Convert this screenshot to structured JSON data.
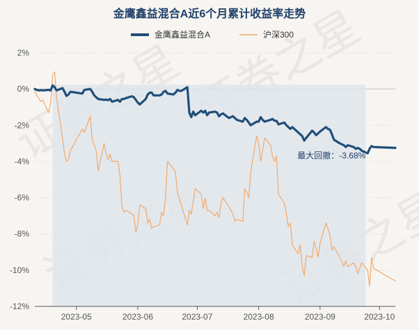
{
  "colors": {
    "fund": "#1f4e79",
    "index": "#f2a96a",
    "shade": "#dfe5ec",
    "grid": "#e6e3de",
    "zero_line": "#d6d2cc",
    "axis": "#555555",
    "title": "#1f3f6a",
    "annotation": "#1f3f6a"
  },
  "watermark": {
    "text": "证券之星"
  },
  "chart_data": {
    "type": "line",
    "title": "金鹰鑫益混合A近6个月累计收益率走势",
    "xlabel": "",
    "ylabel": "",
    "ylim": [
      -12,
      2
    ],
    "yticks": [
      2,
      0,
      -2,
      -4,
      -6,
      -8,
      -10,
      -12
    ],
    "ytick_labels": [
      "2%",
      "0%",
      "-2%",
      "-4%",
      "-6%",
      "-8%",
      "-10%",
      "-12%"
    ],
    "x_range": [
      "2023-04-10",
      "2023-10-09"
    ],
    "xticks": [
      "2023-05-01",
      "2023-06-01",
      "2023-07-01",
      "2023-08-01",
      "2023-09-01",
      "2023-10-01"
    ],
    "xtick_labels": [
      "2023-05",
      "2023-06",
      "2023-07",
      "2023-08",
      "2023-09",
      "2023-10"
    ],
    "grid": true,
    "legend_position": "top-center",
    "max_drawdown_range": [
      "2023-04-19",
      "2023-09-24"
    ],
    "annotation": {
      "text": "最大回撤：-3.68%",
      "x": "2023-09-24",
      "y": -3.68
    },
    "series": [
      {
        "name": "金鹰鑫益混合A",
        "points": [
          [
            "2023-04-10",
            0.0
          ],
          [
            "2023-04-11",
            -0.05
          ],
          [
            "2023-04-12",
            -0.08
          ],
          [
            "2023-04-13",
            -0.06
          ],
          [
            "2023-04-14",
            -0.08
          ],
          [
            "2023-04-17",
            -0.05
          ],
          [
            "2023-04-18",
            -0.08
          ],
          [
            "2023-04-19",
            0.2
          ],
          [
            "2023-04-20",
            0.1
          ],
          [
            "2023-04-21",
            -0.08
          ],
          [
            "2023-04-24",
            0.05
          ],
          [
            "2023-04-25",
            -0.15
          ],
          [
            "2023-04-26",
            -0.38
          ],
          [
            "2023-04-27",
            -0.3
          ],
          [
            "2023-04-28",
            -0.15
          ],
          [
            "2023-05-04",
            -0.25
          ],
          [
            "2023-05-05",
            -0.05
          ],
          [
            "2023-05-08",
            0.0
          ],
          [
            "2023-05-09",
            -0.15
          ],
          [
            "2023-05-10",
            -0.35
          ],
          [
            "2023-05-11",
            -0.45
          ],
          [
            "2023-05-12",
            -0.55
          ],
          [
            "2023-05-15",
            -0.6
          ],
          [
            "2023-05-16",
            -0.58
          ],
          [
            "2023-05-17",
            -0.62
          ],
          [
            "2023-05-18",
            -0.55
          ],
          [
            "2023-05-19",
            -0.7
          ],
          [
            "2023-05-22",
            -0.6
          ],
          [
            "2023-05-23",
            -0.7
          ],
          [
            "2023-05-24",
            -0.55
          ],
          [
            "2023-05-25",
            -0.55
          ],
          [
            "2023-05-26",
            -0.5
          ],
          [
            "2023-05-29",
            -0.4
          ],
          [
            "2023-05-30",
            -0.45
          ],
          [
            "2023-05-31",
            -0.6
          ],
          [
            "2023-06-01",
            -0.75
          ],
          [
            "2023-06-02",
            -0.85
          ],
          [
            "2023-06-05",
            -0.55
          ],
          [
            "2023-06-06",
            -0.3
          ],
          [
            "2023-06-07",
            -0.2
          ],
          [
            "2023-06-08",
            -0.2
          ],
          [
            "2023-06-09",
            -0.35
          ],
          [
            "2023-06-12",
            -0.35
          ],
          [
            "2023-06-13",
            -0.3
          ],
          [
            "2023-06-14",
            -0.15
          ],
          [
            "2023-06-15",
            -0.1
          ],
          [
            "2023-06-16",
            -0.25
          ],
          [
            "2023-06-19",
            -0.3
          ],
          [
            "2023-06-20",
            -0.2
          ],
          [
            "2023-06-21",
            -0.05
          ],
          [
            "2023-06-22",
            -0.1
          ],
          [
            "2023-06-23",
            -0.1
          ],
          [
            "2023-06-26",
            0.1
          ],
          [
            "2023-06-27",
            -1.3
          ],
          [
            "2023-06-28",
            -1.55
          ],
          [
            "2023-06-29",
            -1.25
          ],
          [
            "2023-06-30",
            -1.45
          ],
          [
            "2023-07-03",
            -1.2
          ],
          [
            "2023-07-04",
            -1.3
          ],
          [
            "2023-07-05",
            -1.2
          ],
          [
            "2023-07-06",
            -1.45
          ],
          [
            "2023-07-07",
            -1.3
          ],
          [
            "2023-07-10",
            -1.25
          ],
          [
            "2023-07-11",
            -1.3
          ],
          [
            "2023-07-12",
            -1.5
          ],
          [
            "2023-07-13",
            -1.4
          ],
          [
            "2023-07-14",
            -1.35
          ],
          [
            "2023-07-17",
            -1.6
          ],
          [
            "2023-07-18",
            -1.55
          ],
          [
            "2023-07-19",
            -1.5
          ],
          [
            "2023-07-20",
            -1.6
          ],
          [
            "2023-07-21",
            -1.7
          ],
          [
            "2023-07-24",
            -1.8
          ],
          [
            "2023-07-25",
            -1.6
          ],
          [
            "2023-07-26",
            -1.7
          ],
          [
            "2023-07-27",
            -1.85
          ],
          [
            "2023-07-28",
            -2.0
          ],
          [
            "2023-07-31",
            -1.8
          ],
          [
            "2023-08-01",
            -1.8
          ],
          [
            "2023-08-02",
            -1.55
          ],
          [
            "2023-08-03",
            -1.7
          ],
          [
            "2023-08-04",
            -1.8
          ],
          [
            "2023-08-07",
            -1.7
          ],
          [
            "2023-08-08",
            -1.65
          ],
          [
            "2023-08-09",
            -1.75
          ],
          [
            "2023-08-10",
            -1.75
          ],
          [
            "2023-08-11",
            -1.95
          ],
          [
            "2023-08-14",
            -1.85
          ],
          [
            "2023-08-15",
            -2.0
          ],
          [
            "2023-08-16",
            -2.1
          ],
          [
            "2023-08-17",
            -2.2
          ],
          [
            "2023-08-18",
            -2.1
          ],
          [
            "2023-08-21",
            -2.4
          ],
          [
            "2023-08-22",
            -2.5
          ],
          [
            "2023-08-23",
            -2.6
          ],
          [
            "2023-08-24",
            -2.85
          ],
          [
            "2023-08-25",
            -2.7
          ],
          [
            "2023-08-28",
            -2.3
          ],
          [
            "2023-08-29",
            -2.4
          ],
          [
            "2023-08-30",
            -2.55
          ],
          [
            "2023-08-31",
            -2.45
          ],
          [
            "2023-09-01",
            -2.35
          ],
          [
            "2023-09-04",
            -2.1
          ],
          [
            "2023-09-05",
            -2.2
          ],
          [
            "2023-09-06",
            -2.25
          ],
          [
            "2023-09-07",
            -2.5
          ],
          [
            "2023-09-08",
            -2.8
          ],
          [
            "2023-09-11",
            -3.0
          ],
          [
            "2023-09-12",
            -3.05
          ],
          [
            "2023-09-13",
            -3.1
          ],
          [
            "2023-09-14",
            -3.2
          ],
          [
            "2023-09-15",
            -3.1
          ],
          [
            "2023-09-18",
            -3.2
          ],
          [
            "2023-09-19",
            -3.3
          ],
          [
            "2023-09-20",
            -3.25
          ],
          [
            "2023-09-21",
            -3.3
          ],
          [
            "2023-09-22",
            -3.4
          ],
          [
            "2023-09-25",
            -3.55
          ],
          [
            "2023-09-26",
            -3.3
          ],
          [
            "2023-09-27",
            -3.15
          ],
          [
            "2023-09-28",
            -3.2
          ],
          [
            "2023-10-09",
            -3.25
          ]
        ]
      },
      {
        "name": "沪深300",
        "points": [
          [
            "2023-04-10",
            -0.1
          ],
          [
            "2023-04-11",
            -0.35
          ],
          [
            "2023-04-12",
            -0.5
          ],
          [
            "2023-04-13",
            -0.7
          ],
          [
            "2023-04-14",
            -0.6
          ],
          [
            "2023-04-17",
            -1.3
          ],
          [
            "2023-04-18",
            -0.8
          ],
          [
            "2023-04-19",
            0.75
          ],
          [
            "2023-04-20",
            0.95
          ],
          [
            "2023-04-21",
            -0.5
          ],
          [
            "2023-04-24",
            -2.7
          ],
          [
            "2023-04-25",
            -3.6
          ],
          [
            "2023-04-26",
            -4.0
          ],
          [
            "2023-04-27",
            -3.9
          ],
          [
            "2023-04-28",
            -3.4
          ],
          [
            "2023-05-04",
            -2.2
          ],
          [
            "2023-05-05",
            -2.4
          ],
          [
            "2023-05-08",
            -1.5
          ],
          [
            "2023-05-09",
            -2.8
          ],
          [
            "2023-05-10",
            -3.1
          ],
          [
            "2023-05-11",
            -3.4
          ],
          [
            "2023-05-12",
            -4.5
          ],
          [
            "2023-05-15",
            -3.0
          ],
          [
            "2023-05-16",
            -3.6
          ],
          [
            "2023-05-17",
            -3.9
          ],
          [
            "2023-05-18",
            -3.6
          ],
          [
            "2023-05-19",
            -4.0
          ],
          [
            "2023-05-22",
            -4.0
          ],
          [
            "2023-05-23",
            -4.8
          ],
          [
            "2023-05-24",
            -6.5
          ],
          [
            "2023-05-25",
            -6.8
          ],
          [
            "2023-05-26",
            -6.7
          ],
          [
            "2023-05-29",
            -6.9
          ],
          [
            "2023-05-30",
            -7.0
          ],
          [
            "2023-05-31",
            -7.9
          ],
          [
            "2023-06-01",
            -7.5
          ],
          [
            "2023-06-02",
            -6.4
          ],
          [
            "2023-06-05",
            -6.6
          ],
          [
            "2023-06-06",
            -7.4
          ],
          [
            "2023-06-07",
            -7.2
          ],
          [
            "2023-06-08",
            -7.7
          ],
          [
            "2023-06-09",
            -7.6
          ],
          [
            "2023-06-12",
            -7.5
          ],
          [
            "2023-06-13",
            -6.8
          ],
          [
            "2023-06-14",
            -7.0
          ],
          [
            "2023-06-15",
            -6.0
          ],
          [
            "2023-06-16",
            -4.0
          ],
          [
            "2023-06-19",
            -4.4
          ],
          [
            "2023-06-20",
            -4.6
          ],
          [
            "2023-06-21",
            -5.7
          ],
          [
            "2023-06-26",
            -7.5
          ],
          [
            "2023-06-27",
            -6.7
          ],
          [
            "2023-06-28",
            -6.9
          ],
          [
            "2023-06-29",
            -6.2
          ],
          [
            "2023-06-30",
            -5.5
          ],
          [
            "2023-07-03",
            -5.8
          ],
          [
            "2023-07-04",
            -6.6
          ],
          [
            "2023-07-05",
            -6.0
          ],
          [
            "2023-07-06",
            -6.7
          ],
          [
            "2023-07-07",
            -6.7
          ],
          [
            "2023-07-10",
            -7.0
          ],
          [
            "2023-07-11",
            -6.8
          ],
          [
            "2023-07-12",
            -7.1
          ],
          [
            "2023-07-13",
            -6.3
          ],
          [
            "2023-07-14",
            -6.0
          ],
          [
            "2023-07-17",
            -6.5
          ],
          [
            "2023-07-18",
            -6.7
          ],
          [
            "2023-07-19",
            -6.9
          ],
          [
            "2023-07-20",
            -7.3
          ],
          [
            "2023-07-21",
            -7.2
          ],
          [
            "2023-07-24",
            -7.3
          ],
          [
            "2023-07-25",
            -5.5
          ],
          [
            "2023-07-26",
            -5.7
          ],
          [
            "2023-07-27",
            -6.0
          ],
          [
            "2023-07-28",
            -4.6
          ],
          [
            "2023-07-31",
            -2.6
          ],
          [
            "2023-08-01",
            -3.0
          ],
          [
            "2023-08-02",
            -4.0
          ],
          [
            "2023-08-03",
            -3.4
          ],
          [
            "2023-08-04",
            -2.7
          ],
          [
            "2023-08-07",
            -3.1
          ],
          [
            "2023-08-08",
            -3.7
          ],
          [
            "2023-08-09",
            -4.0
          ],
          [
            "2023-08-10",
            -3.7
          ],
          [
            "2023-08-11",
            -5.8
          ],
          [
            "2023-08-14",
            -6.3
          ],
          [
            "2023-08-15",
            -6.9
          ],
          [
            "2023-08-16",
            -7.6
          ],
          [
            "2023-08-17",
            -7.4
          ],
          [
            "2023-08-18",
            -8.6
          ],
          [
            "2023-08-21",
            -9.1
          ],
          [
            "2023-08-22",
            -8.6
          ],
          [
            "2023-08-23",
            -9.8
          ],
          [
            "2023-08-24",
            -10.3
          ],
          [
            "2023-08-25",
            -9.2
          ],
          [
            "2023-08-28",
            -9.3
          ],
          [
            "2023-08-29",
            -8.4
          ],
          [
            "2023-08-30",
            -8.8
          ],
          [
            "2023-08-31",
            -9.3
          ],
          [
            "2023-09-01",
            -8.5
          ],
          [
            "2023-09-04",
            -7.4
          ],
          [
            "2023-09-05",
            -7.7
          ],
          [
            "2023-09-06",
            -8.1
          ],
          [
            "2023-09-07",
            -8.9
          ],
          [
            "2023-09-08",
            -8.7
          ],
          [
            "2023-09-11",
            -9.3
          ],
          [
            "2023-09-12",
            -9.5
          ],
          [
            "2023-09-13",
            -9.8
          ],
          [
            "2023-09-14",
            -9.5
          ],
          [
            "2023-09-15",
            -9.8
          ],
          [
            "2023-09-18",
            -9.6
          ],
          [
            "2023-09-19",
            -9.8
          ],
          [
            "2023-09-20",
            -10.2
          ],
          [
            "2023-09-21",
            -9.9
          ],
          [
            "2023-09-22",
            -9.6
          ],
          [
            "2023-09-25",
            -10.0
          ],
          [
            "2023-09-26",
            -10.9
          ],
          [
            "2023-09-27",
            -9.3
          ],
          [
            "2023-09-28",
            -9.9
          ],
          [
            "2023-10-09",
            -10.6
          ]
        ]
      }
    ]
  }
}
